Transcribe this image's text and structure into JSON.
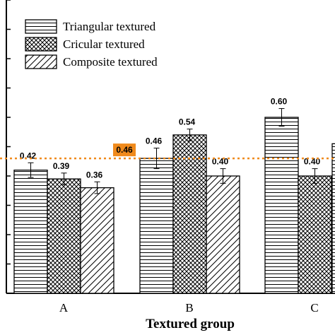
{
  "chart_data": {
    "type": "bar",
    "categories": [
      "A",
      "B",
      "C"
    ],
    "xlabel": "Textured group",
    "ylabel": "",
    "ylim": [
      0,
      1.0
    ],
    "grid": false,
    "legend_position": "top-left",
    "series": [
      {
        "name": "Triangular textured",
        "pattern": "horizontal-lines",
        "values": [
          0.42,
          0.46,
          0.6
        ],
        "errors": [
          0.025,
          0.035,
          0.03
        ],
        "labels": [
          "0.42",
          "0.46",
          "0.60"
        ]
      },
      {
        "name": "Cricular textured",
        "pattern": "crosshatch",
        "values": [
          0.39,
          0.54,
          0.4
        ],
        "errors": [
          0.02,
          0.02,
          0.025
        ],
        "labels": [
          "0.39",
          "0.54",
          "0.40"
        ]
      },
      {
        "name": "Composite textured",
        "pattern": "diagonal-lines",
        "values": [
          0.36,
          0.4,
          null
        ],
        "errors": [
          0.02,
          0.025,
          null
        ],
        "labels": [
          "0.36",
          "0.40",
          ""
        ]
      }
    ],
    "reference_line": {
      "value": 0.46,
      "label": "0.46",
      "color": "#f08a1c",
      "label_bg": "#f08a1c"
    }
  }
}
